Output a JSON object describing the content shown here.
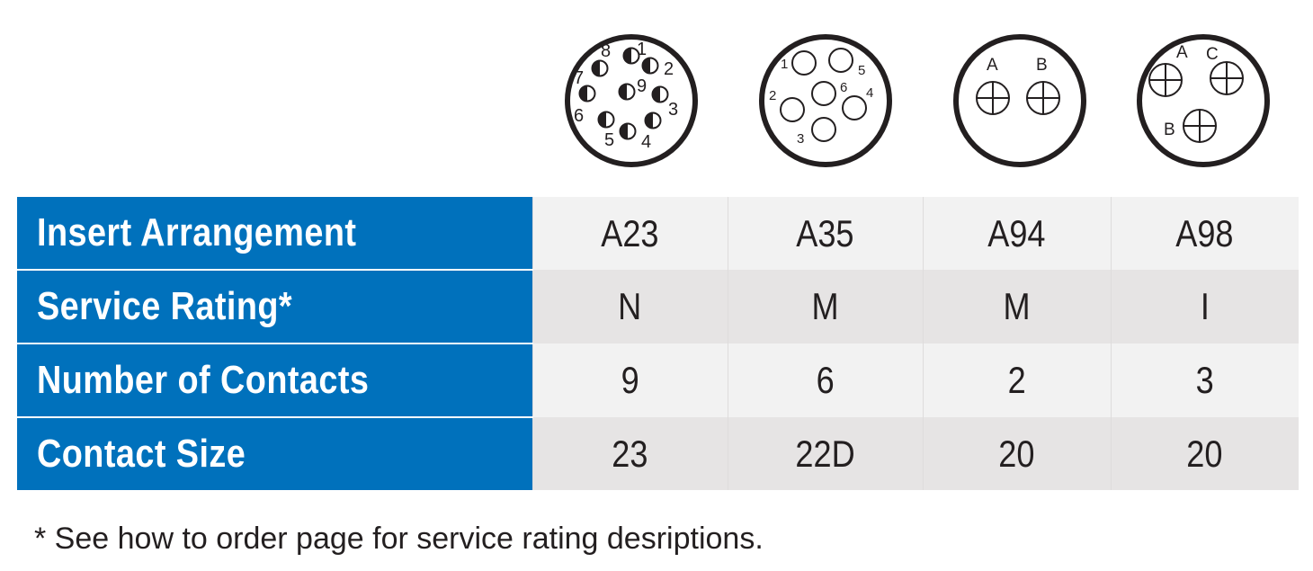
{
  "diagrams": [
    {
      "arrangement": "A23",
      "pin_labels": [
        "1",
        "2",
        "3",
        "4",
        "5",
        "6",
        "7",
        "8",
        "9"
      ]
    },
    {
      "arrangement": "A35",
      "pin_labels": [
        "1",
        "2",
        "3",
        "4",
        "5",
        "6"
      ]
    },
    {
      "arrangement": "A94",
      "pin_labels": [
        "A",
        "B"
      ]
    },
    {
      "arrangement": "A98",
      "pin_labels": [
        "A",
        "B",
        "C"
      ]
    }
  ],
  "table": {
    "rows": [
      {
        "label": "Insert Arrangement",
        "values": [
          "A23",
          "A35",
          "A94",
          "A98"
        ]
      },
      {
        "label": "Service Rating*",
        "values": [
          "N",
          "M",
          "M",
          "I"
        ]
      },
      {
        "label": "Number of Contacts",
        "values": [
          "9",
          "6",
          "2",
          "3"
        ]
      },
      {
        "label": "Contact Size",
        "values": [
          "23",
          "22D",
          "20",
          "20"
        ]
      }
    ]
  },
  "footnote": "* See how to order page for service rating desriptions.",
  "colors": {
    "header_blue": "#0071bc",
    "row_light": "#f2f2f2",
    "row_dark": "#e6e4e4",
    "text": "#231f20"
  },
  "icons": [
    "connector-insert-diagram-icon",
    "half-filled-pin-icon",
    "crosshair-pin-icon"
  ]
}
